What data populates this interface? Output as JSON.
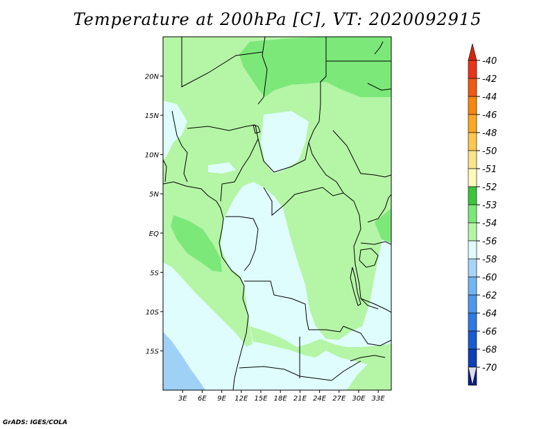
{
  "title": "Temperature at 200hPa [C], VT: 2020092915",
  "credit": "GrADS: IGES/COLA",
  "map": {
    "variable": "Temperature",
    "level": "200hPa",
    "unit": "C",
    "valid_time": "2020092915",
    "lon_range": [
      0,
      35
    ],
    "lat_range": [
      -20,
      25
    ],
    "x_ticks": [
      "3E",
      "6E",
      "9E",
      "12E",
      "15E",
      "18E",
      "21E",
      "24E",
      "27E",
      "30E",
      "33E"
    ],
    "y_ticks": [
      "20N",
      "15N",
      "10N",
      "5N",
      "EQ",
      "5S",
      "10S",
      "15S"
    ],
    "colors": {
      "ocean_pale": "#dffdfd",
      "band_53": "#b5f5a6",
      "band_52": "#7ce87a",
      "band_56": "#9fd0f6",
      "borders": "#000000"
    }
  },
  "legend": {
    "labels": [
      "-40",
      "-42",
      "-44",
      "-46",
      "-48",
      "-50",
      "-51",
      "-52",
      "-53",
      "-54",
      "-56",
      "-58",
      "-60",
      "-62",
      "-64",
      "-66",
      "-68",
      "-70"
    ],
    "colors": [
      "#e8361a",
      "#f05a14",
      "#f6870f",
      "#fba824",
      "#fdc64f",
      "#fde389",
      "#fefbba",
      "#3dc43d",
      "#7ce87a",
      "#b5f5a6",
      "#dffdfd",
      "#a7d4f7",
      "#73b4f2",
      "#4e98ec",
      "#2f79e0",
      "#1a5bd0",
      "#0f3fb4",
      "#0a1f86"
    ],
    "top_arrow_color": "#d8260f",
    "bottom_arrow_color": "#dcdcf2"
  }
}
